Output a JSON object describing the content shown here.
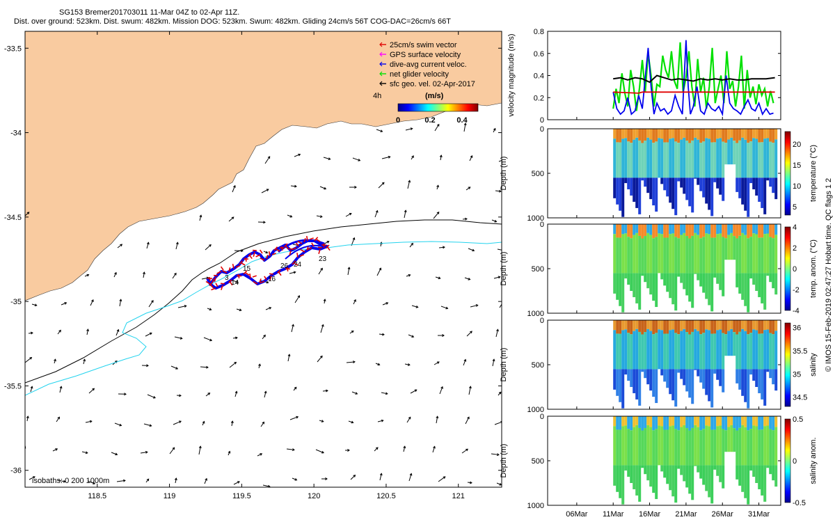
{
  "header": {
    "line1": "SG153 Bremer201703011 11-Mar 04Z to 02-Apr 11Z.",
    "line2": "Dist. over ground: 523km. Dist. swum: 482km. Mission DOG: 523km. Swum: 482km. Gliding 24cm/s 56T COG-DAC=26cm/s 66T"
  },
  "footer_note": "© IMOS 15-Feb-2019 02:47:27 Hobart time. QC flags 1  2",
  "colors": {
    "land": "#f9cba0",
    "isobath_200": "#000000",
    "isobath_1000": "#22d3ee",
    "swim_vector": "#e00000",
    "gps_velocity": "#ff00ff",
    "dac_velocity": "#0000ee",
    "net_velocity": "#00e000",
    "sfc_geo": "#000000"
  },
  "chart_data": [
    {
      "type": "map",
      "xlim": [
        118.0,
        121.3
      ],
      "ylim": [
        -36.1,
        -33.4
      ],
      "xticks": [
        118.5,
        119,
        119.5,
        120,
        120.5,
        121
      ],
      "yticks": [
        -33.5,
        -34,
        -34.5,
        -35,
        -35.5,
        -36
      ],
      "legend_position": "top-right",
      "legend": [
        {
          "key": "swim",
          "label": "25cm/s swim vector",
          "color": "#e00000"
        },
        {
          "key": "gps",
          "label": "GPS surface velocity",
          "color": "#ff00ff"
        },
        {
          "key": "dac",
          "label": "dive-avg current veloc.",
          "color": "#0000ee"
        },
        {
          "key": "net",
          "label": "net glider velocity",
          "color": "#00e000"
        },
        {
          "key": "sfc",
          "label": "sfc geo. vel. 02-Apr-2017",
          "color": "#000000"
        }
      ],
      "colorbar": {
        "prefix": "4h",
        "units": "(m/s)",
        "ticks": [
          0,
          0.2,
          0.4
        ],
        "range": [
          0,
          0.5
        ]
      },
      "isobath_note": "isobaths: 0   200   1000m",
      "track_labels": [
        "3",
        "14",
        "15",
        "16",
        "23",
        "24",
        "26"
      ]
    },
    {
      "type": "line",
      "ylabel": "velocity magnitude (m/s)",
      "ylim": [
        0,
        0.8
      ],
      "yticks": [
        0,
        0.2,
        0.4,
        0.6,
        0.8
      ],
      "series": [
        {
          "key": "sfc",
          "color": "#000000",
          "x": [
            11.0,
            12,
            13,
            14,
            15,
            16,
            17,
            18,
            19,
            20,
            21,
            22,
            23,
            24,
            25,
            26,
            27,
            28,
            29,
            30,
            31,
            32,
            33.2
          ],
          "y": [
            0.37,
            0.38,
            0.36,
            0.38,
            0.37,
            0.34,
            0.4,
            0.38,
            0.36,
            0.37,
            0.36,
            0.35,
            0.37,
            0.36,
            0.37,
            0.36,
            0.37,
            0.36,
            0.36,
            0.37,
            0.37,
            0.37,
            0.38
          ]
        },
        {
          "key": "swim",
          "color": "#e00000",
          "x": [
            11.0,
            14.5,
            15,
            20,
            25,
            30,
            33.2
          ],
          "y": [
            0.25,
            0.24,
            0.25,
            0.25,
            0.25,
            0.25,
            0.25
          ]
        },
        {
          "key": "net",
          "color": "#00e000",
          "x": [
            11.0,
            11.4,
            11.8,
            12.2,
            12.6,
            13.0,
            13.4,
            13.8,
            14.2,
            14.6,
            15.0,
            15.4,
            15.8,
            16.2,
            16.6,
            17.0,
            17.4,
            17.8,
            18.2,
            18.6,
            19.0,
            19.4,
            19.8,
            20.2,
            20.6,
            21.0,
            21.4,
            21.8,
            22.2,
            22.6,
            23.0,
            23.4,
            23.8,
            24.2,
            24.6,
            25.0,
            25.4,
            25.8,
            26.2,
            26.6,
            27.0,
            27.4,
            27.8,
            28.2,
            28.6,
            29.0,
            29.4,
            29.8,
            30.2,
            30.6,
            31.0,
            31.4,
            31.8,
            32.2,
            32.6,
            33.0
          ],
          "y": [
            0.1,
            0.28,
            0.15,
            0.42,
            0.24,
            0.12,
            0.45,
            0.3,
            0.08,
            0.28,
            0.54,
            0.25,
            0.6,
            0.4,
            0.12,
            0.32,
            0.3,
            0.58,
            0.45,
            0.38,
            0.62,
            0.35,
            0.28,
            0.7,
            0.25,
            0.38,
            0.62,
            0.3,
            0.12,
            0.55,
            0.25,
            0.38,
            0.1,
            0.3,
            0.65,
            0.15,
            0.28,
            0.4,
            0.15,
            0.62,
            0.28,
            0.35,
            0.12,
            0.3,
            0.58,
            0.1,
            0.45,
            0.2,
            0.3,
            0.14,
            0.32,
            0.22,
            0.28,
            0.12,
            0.26,
            0.15
          ]
        },
        {
          "key": "dac",
          "color": "#0000ee",
          "x": [
            11.0,
            11.5,
            12.0,
            12.5,
            13.0,
            13.5,
            14.0,
            14.5,
            15.0,
            15.4,
            15.8,
            16.2,
            16.6,
            17.0,
            17.5,
            18.0,
            18.5,
            19.0,
            19.5,
            20.0,
            20.5,
            21.0,
            21.3,
            21.6,
            22.0,
            22.5,
            23.0,
            23.5,
            24.0,
            24.5,
            25.0,
            25.5,
            26.0,
            26.5,
            27.0,
            27.5,
            28.0,
            28.5,
            29.0,
            29.5,
            30.0,
            30.5,
            31.0,
            31.5,
            32.0,
            32.5,
            33.0
          ],
          "y": [
            0.25,
            0.1,
            0.05,
            0.08,
            0.2,
            0.05,
            0.08,
            0.22,
            0.1,
            0.38,
            0.65,
            0.3,
            0.05,
            0.15,
            0.08,
            0.1,
            0.05,
            0.08,
            0.22,
            0.12,
            0.05,
            0.72,
            0.3,
            0.05,
            0.12,
            0.3,
            0.08,
            0.05,
            0.15,
            0.1,
            0.08,
            0.12,
            0.05,
            0.4,
            0.15,
            0.1,
            0.08,
            0.05,
            0.12,
            0.18,
            0.1,
            0.08,
            0.15,
            0.05,
            0.1,
            0.05,
            0.06
          ]
        }
      ]
    },
    {
      "type": "heatmap",
      "ylabel": "Depth (m)",
      "ylim": [
        1000,
        0
      ],
      "yticks": [
        0,
        500,
        1000
      ],
      "colorbar": {
        "label": "temperature (°C)",
        "ticks": [
          5,
          10,
          15,
          20
        ],
        "range": [
          3,
          23
        ]
      }
    },
    {
      "type": "heatmap",
      "ylabel": "Depth (m)",
      "ylim": [
        1000,
        0
      ],
      "yticks": [
        0,
        500,
        1000
      ],
      "colorbar": {
        "label": "temp. anom. (°C)",
        "ticks": [
          -4,
          -2,
          0,
          2,
          4
        ],
        "range": [
          -4,
          4
        ]
      }
    },
    {
      "type": "heatmap",
      "ylabel": "Depth (m)",
      "ylim": [
        1000,
        0
      ],
      "yticks": [
        0,
        500,
        1000
      ],
      "colorbar": {
        "label": "salinity",
        "ticks": [
          34.5,
          35,
          35.5,
          36
        ],
        "range": [
          34.3,
          36.1
        ]
      }
    },
    {
      "type": "heatmap",
      "ylabel": "Depth (m)",
      "ylim": [
        1000,
        0
      ],
      "yticks": [
        0,
        500,
        1000
      ],
      "colorbar": {
        "label": "salinity anom.",
        "ticks": [
          -0.5,
          0,
          0.5
        ],
        "range": [
          -0.5,
          0.5
        ]
      }
    },
    {
      "type": "axis",
      "xlim": [
        2,
        34
      ],
      "xticks": [
        6,
        11,
        16,
        21,
        26,
        31
      ],
      "xticklabels": [
        "06Mar",
        "11Mar",
        "16Mar",
        "21Mar",
        "26Mar",
        "31Mar"
      ]
    }
  ]
}
